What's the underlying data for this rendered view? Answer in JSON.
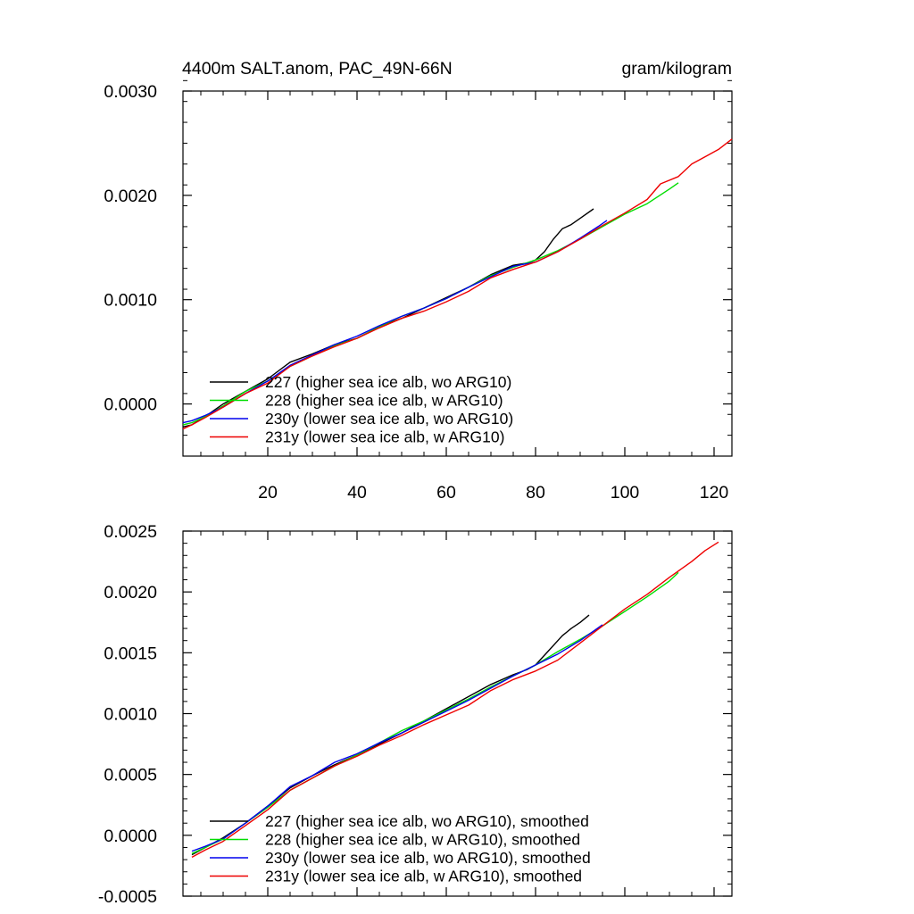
{
  "chart_data": [
    {
      "type": "line",
      "title_left": "4400m SALT.anom, PAC_49N-66N",
      "title_right": "gram/kilogram",
      "xlim": [
        1,
        124
      ],
      "ylim": [
        -0.0005,
        0.003
      ],
      "x_ticks": [
        20,
        40,
        60,
        80,
        100,
        120
      ],
      "x_tick_labels": [
        "20",
        "40",
        "60",
        "80",
        "100",
        "120"
      ],
      "y_ticks": [
        0.0,
        0.001,
        0.002,
        0.003
      ],
      "y_tick_labels": [
        "0.0000",
        "0.0010",
        "0.0020",
        "0.0030"
      ],
      "legend_position": "lower-left",
      "series": [
        {
          "name": "227 (higher sea ice alb, wo ARG10)",
          "color": "#000000",
          "x": [
            1,
            3,
            6,
            10,
            15,
            20,
            25,
            30,
            35,
            40,
            45,
            50,
            55,
            60,
            65,
            70,
            75,
            78,
            80,
            82,
            84,
            86,
            88,
            90,
            93
          ],
          "y": [
            -0.00022,
            -0.0002,
            -0.00012,
            0.0,
            0.00012,
            0.00024,
            0.0004,
            0.00048,
            0.00057,
            0.00063,
            0.00074,
            0.00082,
            0.00092,
            0.00102,
            0.00112,
            0.00124,
            0.00133,
            0.00135,
            0.00138,
            0.00146,
            0.00158,
            0.00168,
            0.00172,
            0.00178,
            0.00187
          ]
        },
        {
          "name": "228 (higher sea ice alb, w ARG10)",
          "color": "#00dd00",
          "x": [
            1,
            3,
            6,
            10,
            15,
            20,
            25,
            30,
            35,
            40,
            45,
            50,
            55,
            60,
            65,
            70,
            75,
            80,
            85,
            90,
            95,
            100,
            105,
            110,
            112
          ],
          "y": [
            -0.0002,
            -0.00018,
            -0.00012,
            -2e-05,
            0.00012,
            0.00022,
            0.00036,
            0.00046,
            0.00056,
            0.00063,
            0.00074,
            0.00084,
            0.00092,
            0.00101,
            0.00112,
            0.00123,
            0.00131,
            0.00138,
            0.00147,
            0.00158,
            0.0017,
            0.00182,
            0.00192,
            0.00206,
            0.00212
          ]
        },
        {
          "name": "230y (lower sea ice alb, wo ARG10)",
          "color": "#0000ee",
          "x": [
            1,
            3,
            6,
            10,
            15,
            20,
            25,
            30,
            35,
            40,
            45,
            50,
            55,
            60,
            65,
            70,
            75,
            80,
            85,
            90,
            94,
            96
          ],
          "y": [
            -0.00018,
            -0.00016,
            -0.00011,
            -3e-05,
            0.0001,
            0.00022,
            0.00037,
            0.00047,
            0.00057,
            0.00065,
            0.00075,
            0.00084,
            0.00092,
            0.00101,
            0.00112,
            0.00122,
            0.00132,
            0.00136,
            0.00146,
            0.00159,
            0.0017,
            0.00176
          ]
        },
        {
          "name": "231y (lower sea ice alb, w ARG10)",
          "color": "#ee0000",
          "x": [
            1,
            3,
            6,
            10,
            15,
            20,
            25,
            30,
            35,
            40,
            45,
            50,
            55,
            60,
            65,
            70,
            75,
            80,
            85,
            90,
            95,
            100,
            105,
            108,
            112,
            115,
            118,
            121,
            124
          ],
          "y": [
            -0.00024,
            -0.0002,
            -0.00013,
            -3e-05,
            0.0001,
            0.0002,
            0.00036,
            0.00046,
            0.00055,
            0.00063,
            0.00073,
            0.00082,
            0.00089,
            0.00098,
            0.00108,
            0.00121,
            0.00129,
            0.00136,
            0.00146,
            0.00158,
            0.00171,
            0.00183,
            0.00196,
            0.00211,
            0.00218,
            0.0023,
            0.00237,
            0.00244,
            0.00254
          ]
        }
      ]
    },
    {
      "type": "line",
      "xlim": [
        1,
        124
      ],
      "ylim": [
        -0.0005,
        0.0025
      ],
      "x_ticks": [
        20,
        40,
        60,
        80,
        100,
        120
      ],
      "y_ticks": [
        -0.0005,
        0.0,
        0.0005,
        0.001,
        0.0015,
        0.002,
        0.0025
      ],
      "y_tick_labels": [
        "-0.0005",
        "0.0000",
        "0.0005",
        "0.0010",
        "0.0015",
        "0.0020",
        "0.0025"
      ],
      "legend_position": "lower-left",
      "series": [
        {
          "name": "227 (higher sea ice alb, wo ARG10), smoothed",
          "color": "#000000",
          "x": [
            3,
            6,
            10,
            15,
            20,
            25,
            30,
            35,
            40,
            45,
            50,
            55,
            60,
            65,
            70,
            75,
            78,
            80,
            83,
            86,
            88,
            90,
            92
          ],
          "y": [
            -0.00016,
            -0.0001,
            -2e-05,
            0.0001,
            0.00024,
            0.00039,
            0.00049,
            0.00058,
            0.00066,
            0.00075,
            0.00084,
            0.00094,
            0.00104,
            0.00114,
            0.00124,
            0.00132,
            0.00136,
            0.0014,
            0.00152,
            0.00164,
            0.0017,
            0.00175,
            0.00181
          ]
        },
        {
          "name": "228 (higher sea ice alb, w ARG10), smoothed",
          "color": "#00dd00",
          "x": [
            3,
            6,
            10,
            15,
            20,
            25,
            30,
            35,
            40,
            45,
            50,
            55,
            60,
            65,
            70,
            75,
            80,
            85,
            90,
            95,
            100,
            105,
            110,
            112
          ],
          "y": [
            -0.00015,
            -0.0001,
            -3e-05,
            0.0001,
            0.00023,
            0.00037,
            0.00047,
            0.00057,
            0.00066,
            0.00076,
            0.00086,
            0.00094,
            0.00103,
            0.00112,
            0.00122,
            0.00131,
            0.0014,
            0.00151,
            0.00161,
            0.00172,
            0.00184,
            0.00196,
            0.00209,
            0.00216
          ]
        },
        {
          "name": "230y (lower sea ice alb, wo ARG10), smoothed",
          "color": "#0000ee",
          "x": [
            3,
            6,
            10,
            15,
            20,
            25,
            30,
            35,
            40,
            45,
            50,
            55,
            60,
            65,
            70,
            75,
            80,
            85,
            90,
            95
          ],
          "y": [
            -0.00013,
            -9e-05,
            -3e-05,
            0.0001,
            0.00024,
            0.0004,
            0.00049,
            0.0006,
            0.00067,
            0.00076,
            0.00084,
            0.00093,
            0.00102,
            0.00111,
            0.00121,
            0.00131,
            0.0014,
            0.00149,
            0.0016,
            0.00173
          ]
        },
        {
          "name": "231y (lower sea ice alb, w ARG10), smoothed",
          "color": "#ee0000",
          "x": [
            3,
            6,
            10,
            15,
            20,
            25,
            30,
            35,
            40,
            45,
            50,
            55,
            60,
            65,
            70,
            75,
            80,
            85,
            90,
            95,
            100,
            105,
            110,
            115,
            118,
            121
          ],
          "y": [
            -0.00018,
            -0.00012,
            -5e-05,
            8e-05,
            0.00021,
            0.00037,
            0.00047,
            0.00057,
            0.00065,
            0.00074,
            0.00082,
            0.00091,
            0.00099,
            0.00107,
            0.00119,
            0.00128,
            0.00135,
            0.00144,
            0.00158,
            0.00172,
            0.00186,
            0.00198,
            0.00212,
            0.00225,
            0.00234,
            0.00241
          ]
        }
      ]
    }
  ]
}
